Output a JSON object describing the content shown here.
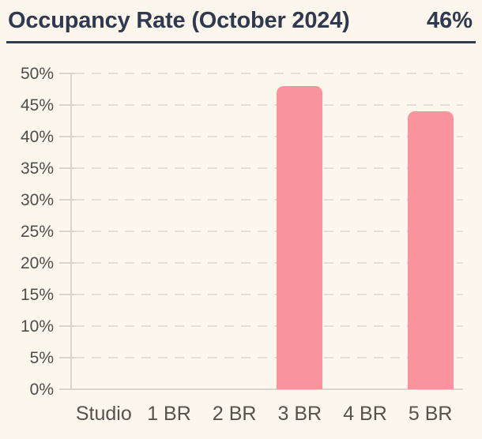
{
  "header": {
    "title": "Occupancy Rate (October 2024)",
    "value": "46%"
  },
  "chart_data": {
    "type": "bar",
    "title": "Occupancy Rate (October 2024)",
    "headline_value": "46%",
    "categories": [
      "Studio",
      "1 BR",
      "2 BR",
      "3 BR",
      "4 BR",
      "5 BR"
    ],
    "values": [
      0,
      0,
      0,
      48,
      0,
      44
    ],
    "unit": "%",
    "xlabel": "",
    "ylabel": "",
    "ylim": [
      0,
      50
    ],
    "y_tick_step": 5,
    "y_tick_labels": [
      "0%",
      "5%",
      "10%",
      "15%",
      "20%",
      "25%",
      "30%",
      "35%",
      "40%",
      "45%",
      "50%"
    ],
    "grid": "horizontal-dashed",
    "legend": "none",
    "bar_color": "#f9949f"
  },
  "colors": {
    "background": "#fdf6ec",
    "accent_text": "#303a4e",
    "divider": "#303a4e",
    "bar": "#f9949f",
    "grid": "#e3dfd7",
    "axis": "#d9d5cd",
    "y_label_text": "#4d4d4d",
    "x_label_text": "#56524d"
  }
}
